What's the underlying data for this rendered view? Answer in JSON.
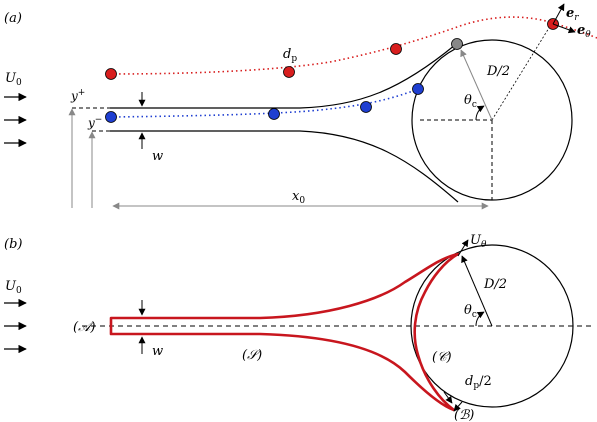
{
  "panel_a": {
    "panel_label": "(a)",
    "U0": "U",
    "U0_sub": "0",
    "y_plus": "y",
    "y_plus_sup": "+",
    "y_minus": "y",
    "y_minus_sup": "−",
    "w": "w",
    "x0": "x",
    "x0_sub": "0",
    "dp": "d",
    "dp_sub": "p",
    "D2": "D/2",
    "theta_c": "θ",
    "theta_c_sub": "c",
    "er": "e",
    "er_sub": "r",
    "etheta": "e",
    "etheta_sub": "θ"
  },
  "panel_b": {
    "panel_label": "(b)",
    "U0": "U",
    "U0_sub": "0",
    "U_theta": "U",
    "U_theta_sub": "θ",
    "D2": "D/2",
    "theta_c": "θ",
    "theta_c_sub": "c",
    "A": "(𝒜)",
    "S": "(𝒮)",
    "C": "(𝒞)",
    "B": "(ℬ)",
    "w": "w",
    "dp2": "d",
    "dp2_sub": "p",
    "dp2_tail": "/2"
  },
  "colors": {
    "red_particle": "#d81e1e",
    "blue_particle": "#1f3fd1",
    "grey_particle": "#888888",
    "boundary": "#c8161e",
    "axis_grey": "#888888"
  }
}
